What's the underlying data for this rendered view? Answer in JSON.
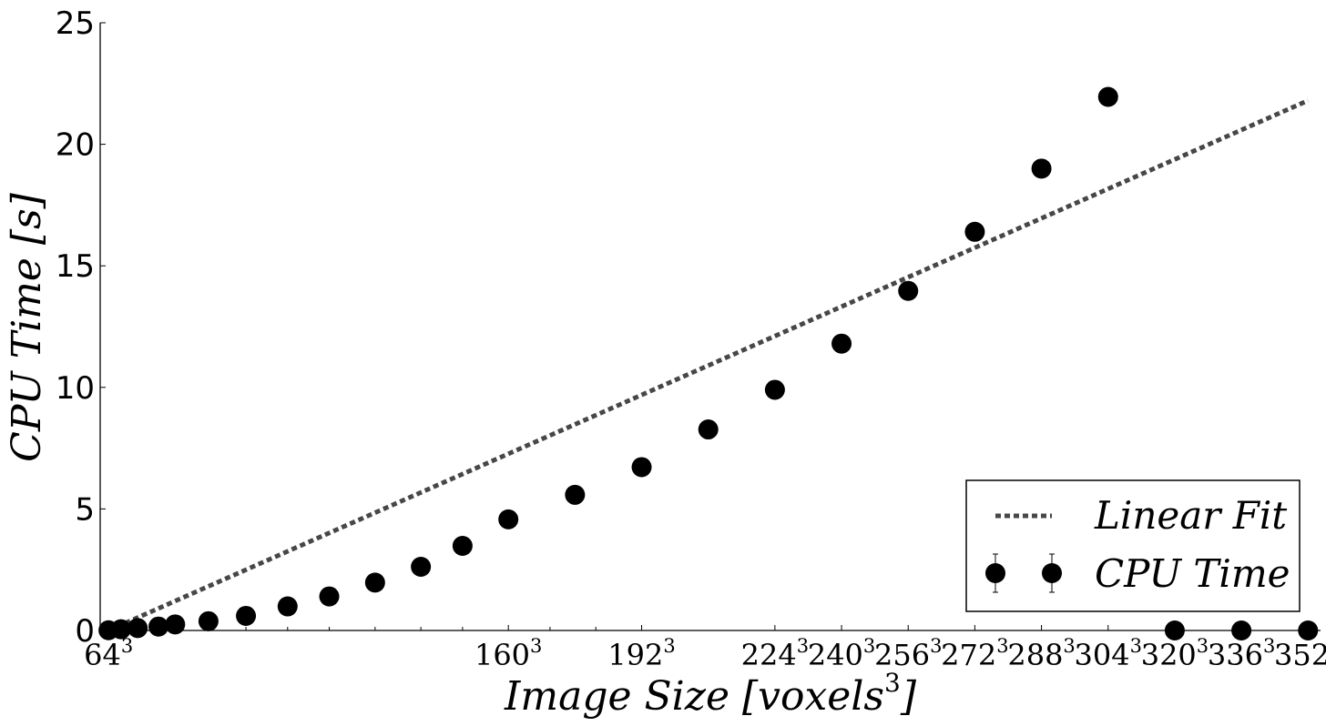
{
  "chart_data": {
    "type": "scatter",
    "title": "",
    "xlabel": "Image Size [voxels",
    "xlabel_exp": "3",
    "xlabel_suffix": "]",
    "ylabel": "CPU Time [s]",
    "xlim": [
      62,
      355
    ],
    "ylim": [
      0,
      25
    ],
    "yticks": [
      0,
      5,
      10,
      15,
      20,
      25
    ],
    "xtick_exponent": "3",
    "xticks": [
      64,
      160,
      192,
      224,
      240,
      256,
      272,
      288,
      304,
      320,
      336,
      352
    ],
    "minor_xticks": [
      67,
      71,
      76,
      80,
      88,
      97,
      107,
      117,
      128,
      139,
      149,
      170,
      181
    ],
    "grid": false,
    "legend_position": "bottom-right",
    "series": [
      {
        "name": "Linear Fit",
        "kind": "line",
        "style": "dotted",
        "color": "#474747",
        "x": [
          64,
          352
        ],
        "y": [
          0.0,
          21.8
        ]
      },
      {
        "name": "CPU Time",
        "kind": "scatter",
        "color": "#000000",
        "x": [
          64,
          67,
          71,
          76,
          80,
          88,
          97,
          107,
          117,
          128,
          139,
          149,
          160,
          176,
          192,
          208,
          224,
          240,
          256,
          272,
          288,
          304,
          320,
          336,
          352
        ],
        "y": [
          0.01,
          0.05,
          0.1,
          0.16,
          0.25,
          0.38,
          0.6,
          0.99,
          1.4,
          1.97,
          2.62,
          3.48,
          4.57,
          5.58,
          6.72,
          8.27,
          9.9,
          11.8,
          13.97,
          16.4,
          19.0,
          21.95,
          0.0,
          0.0,
          0.0
        ]
      }
    ],
    "legend": [
      {
        "label": "Linear Fit",
        "marker": "dotted-line"
      },
      {
        "label": "CPU Time",
        "marker": "errorbar-circles"
      }
    ]
  }
}
